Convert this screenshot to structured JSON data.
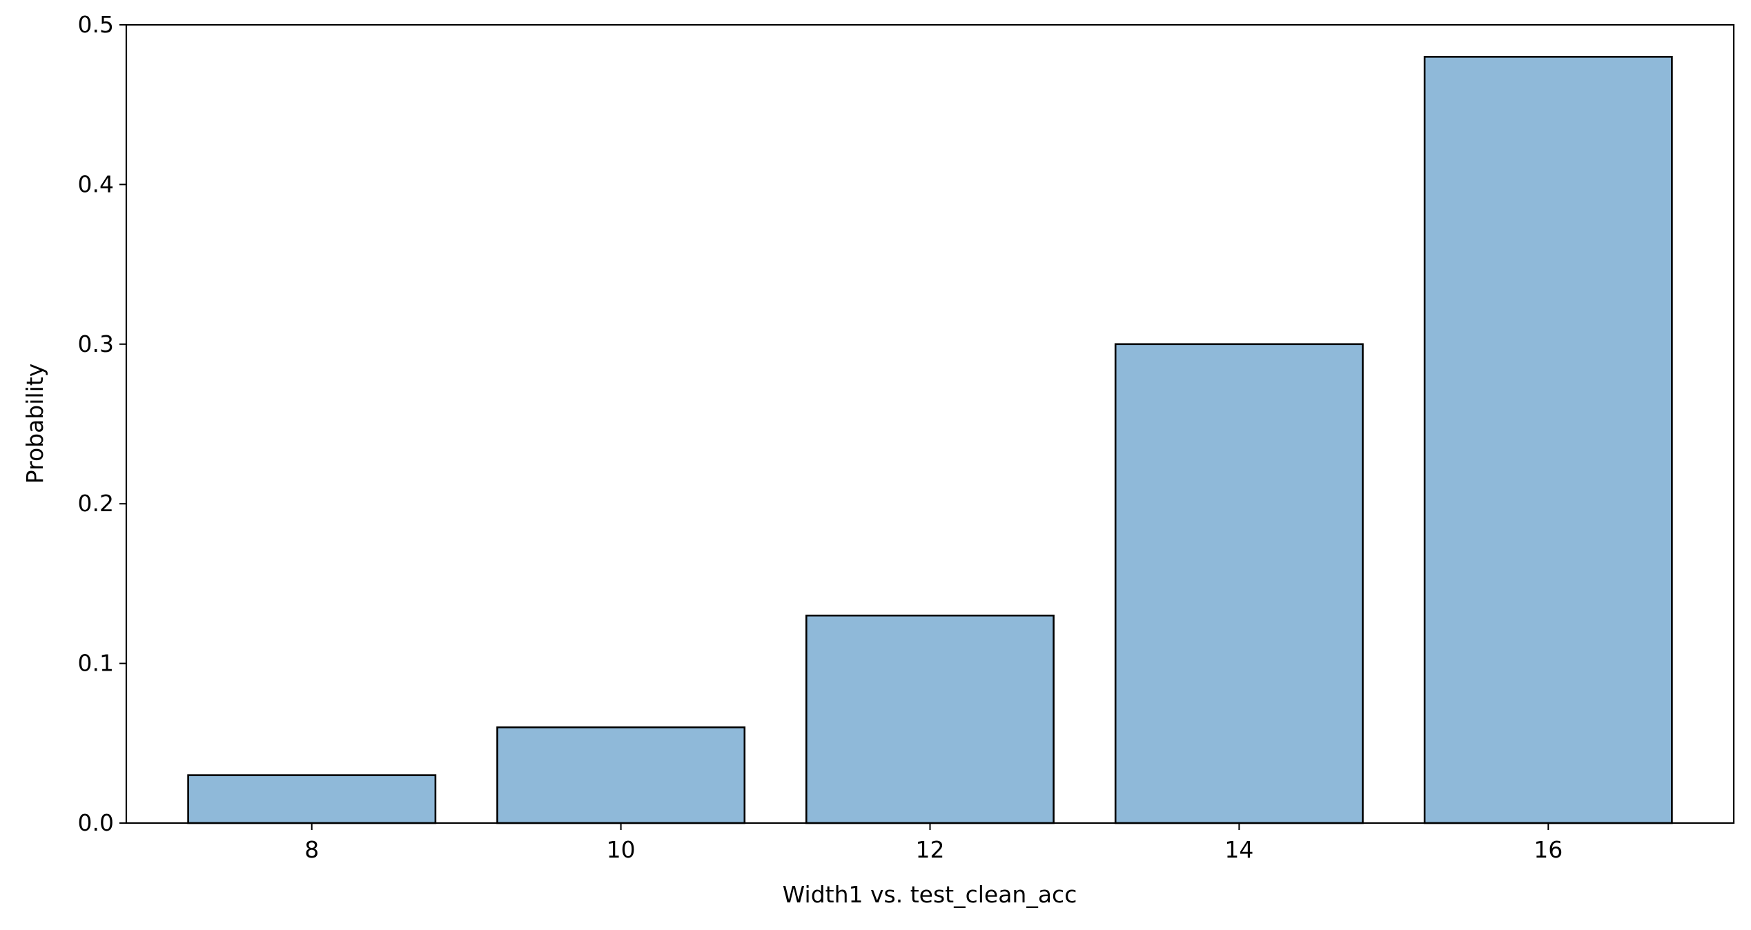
{
  "chart_data": {
    "type": "bar",
    "categories": [
      "8",
      "10",
      "12",
      "14",
      "16"
    ],
    "values": [
      0.03,
      0.06,
      0.13,
      0.3,
      0.48
    ],
    "title": "",
    "xlabel": "Width1 vs. test_clean_acc",
    "ylabel": "Probability",
    "ylim": [
      0,
      0.5
    ],
    "yticks": [
      "0.0",
      "0.1",
      "0.2",
      "0.3",
      "0.4",
      "0.5"
    ],
    "grid": false,
    "legend": "none",
    "colors": {
      "bar_fill": "#8fb9d9",
      "bar_edge": "#000000",
      "axes": "#000000",
      "background": "#ffffff"
    }
  }
}
